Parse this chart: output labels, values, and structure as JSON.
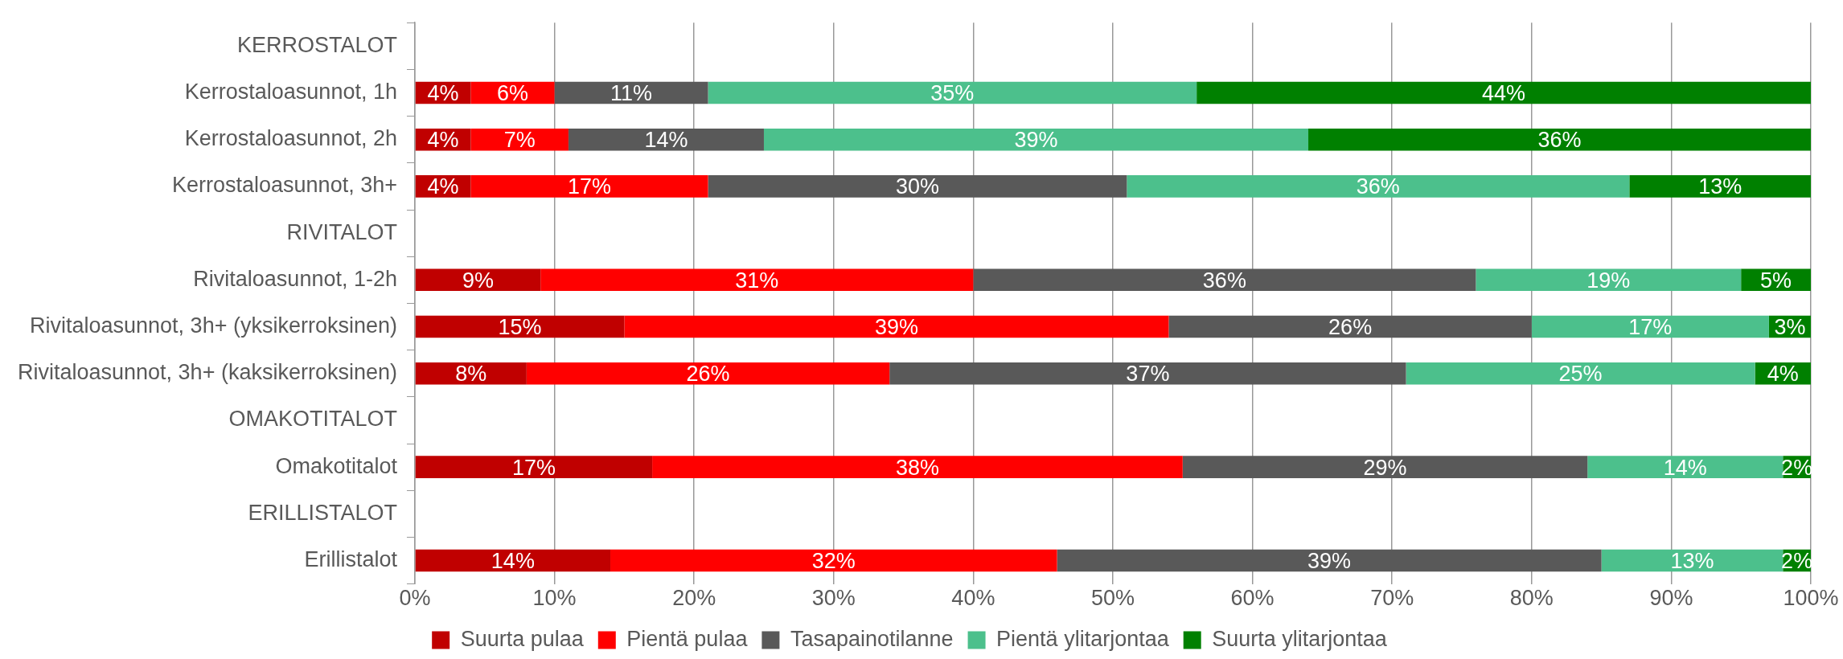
{
  "chart_data": {
    "type": "bar",
    "orientation": "horizontal",
    "stacked": true,
    "categories": [
      "KERROSTALOT",
      "Kerrostaloasunnot, 1h",
      "Kerrostaloasunnot, 2h",
      "Kerrostaloasunnot, 3h+",
      "RIVITALOT",
      "Rivitaloasunnot, 1-2h",
      "Rivitaloasunnot, 3h+ (yksikerroksinen)",
      "Rivitaloasunnot, 3h+ (kaksikerroksinen)",
      "OMAKOTITALOT",
      "Omakotitalot",
      "ERILLISTALOT",
      "Erillistalot"
    ],
    "series": [
      {
        "name": "Suurta pulaa",
        "color": "#c00000",
        "values": [
          null,
          4,
          4,
          4,
          null,
          9,
          15,
          8,
          null,
          17,
          null,
          14
        ],
        "value_labels": [
          null,
          "4%",
          "4%",
          "4%",
          null,
          "9%",
          "15%",
          "8%",
          null,
          "17%",
          null,
          "14%"
        ]
      },
      {
        "name": "Pientä pulaa",
        "color": "#ff0000",
        "values": [
          null,
          6,
          7,
          17,
          null,
          31,
          39,
          26,
          null,
          38,
          null,
          32
        ],
        "value_labels": [
          null,
          "6%",
          "7%",
          "17%",
          null,
          "31%",
          "39%",
          "26%",
          null,
          "38%",
          null,
          "32%"
        ]
      },
      {
        "name": "Tasapainotilanne",
        "color": "#595959",
        "values": [
          null,
          11,
          14,
          30,
          null,
          36,
          26,
          37,
          null,
          29,
          null,
          39
        ],
        "value_labels": [
          null,
          "11%",
          "14%",
          "30%",
          null,
          "36%",
          "26%",
          "37%",
          null,
          "29%",
          null,
          "39%"
        ]
      },
      {
        "name": "Pientä ylitarjontaa",
        "color": "#4cc08c",
        "values": [
          null,
          35,
          39,
          36,
          null,
          19,
          17,
          25,
          null,
          14,
          null,
          13
        ],
        "value_labels": [
          null,
          "35%",
          "39%",
          "36%",
          null,
          "19%",
          "17%",
          "25%",
          null,
          "14%",
          null,
          "13%"
        ]
      },
      {
        "name": "Suurta ylitarjontaa",
        "color": "#008000",
        "values": [
          null,
          44,
          36,
          13,
          null,
          5,
          3,
          4,
          null,
          2,
          null,
          2
        ],
        "value_labels": [
          null,
          "44%",
          "36%",
          "13%",
          null,
          "5%",
          "3%",
          "4%",
          null,
          "2%",
          null,
          "2%"
        ]
      }
    ],
    "xlim": [
      0,
      100
    ],
    "xticks": [
      {
        "value": 0,
        "label": "0%"
      },
      {
        "value": 10,
        "label": "10%"
      },
      {
        "value": 20,
        "label": "20%"
      },
      {
        "value": 30,
        "label": "30%"
      },
      {
        "value": 40,
        "label": "40%"
      },
      {
        "value": 50,
        "label": "50%"
      },
      {
        "value": 60,
        "label": "60%"
      },
      {
        "value": 70,
        "label": "70%"
      },
      {
        "value": 80,
        "label": "80%"
      },
      {
        "value": 90,
        "label": "90%"
      },
      {
        "value": 100,
        "label": "100%"
      }
    ],
    "grid": "x",
    "legend": "bottom"
  }
}
